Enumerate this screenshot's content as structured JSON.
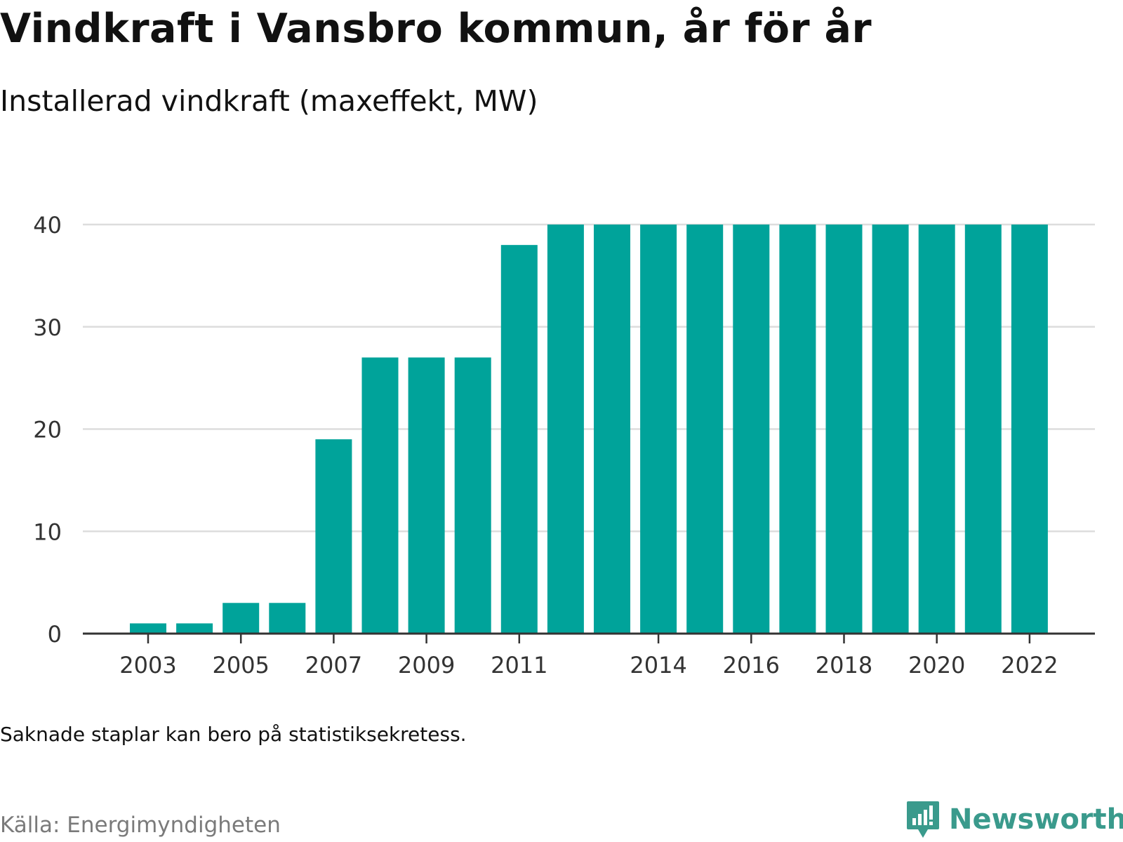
{
  "header": {
    "title": "Vindkraft i Vansbro kommun, år för år",
    "subtitle": "Installerad vindkraft (maxeffekt, MW)"
  },
  "footer": {
    "note": "Saknade staplar kan bero på statistiksekretess.",
    "source": "Källa: Energimyndigheten",
    "brand": "Newsworthy",
    "brand_icon": "newsworthy-logo-icon"
  },
  "colors": {
    "bar": "#00a39a",
    "grid": "#dddddd",
    "axis": "#333333",
    "brand": "#3a9a8c"
  },
  "chart_data": {
    "type": "bar",
    "title": "Vindkraft i Vansbro kommun, år för år",
    "subtitle": "Installerad vindkraft (maxeffekt, MW)",
    "xlabel": "",
    "ylabel": "",
    "ylim": [
      0,
      40
    ],
    "yticks": [
      0,
      10,
      20,
      30,
      40
    ],
    "grid": true,
    "legend": "none",
    "categories": [
      "2003",
      "2004",
      "2005",
      "2006",
      "2007",
      "2008",
      "2009",
      "2010",
      "2011",
      "2012",
      "2013",
      "2014",
      "2015",
      "2016",
      "2017",
      "2018",
      "2019",
      "2020",
      "2021",
      "2022"
    ],
    "xtick_labels": [
      "2003",
      "2005",
      "2007",
      "2009",
      "2011",
      "2014",
      "2016",
      "2018",
      "2020",
      "2022"
    ],
    "values": [
      1,
      1,
      3,
      3,
      19,
      27,
      27,
      27,
      38,
      40,
      40,
      40,
      40,
      40,
      40,
      40,
      40,
      40,
      40,
      40
    ]
  }
}
